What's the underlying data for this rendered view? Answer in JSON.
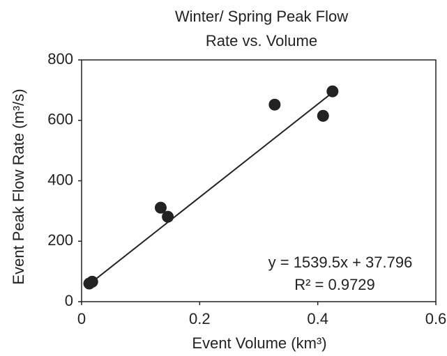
{
  "chart_data": {
    "type": "scatter",
    "title": [
      "Winter/ Spring Peak Flow",
      "Rate vs. Volume"
    ],
    "x_label": "Event Volume (km³)",
    "y_label": "Event Peak Flow Rate (m³/s)",
    "x": [
      0.013,
      0.018,
      0.134,
      0.146,
      0.327,
      0.409,
      0.425
    ],
    "values": [
      60,
      66,
      311,
      281,
      652,
      615,
      696
    ],
    "color": "#222222",
    "xlim": [
      0,
      0.6
    ],
    "xticks": [
      0,
      0.2,
      0.4,
      0.6
    ],
    "ylim": [
      0,
      800
    ],
    "yticks": [
      0,
      200,
      400,
      600,
      800
    ],
    "grid": false,
    "trendline": {
      "slope": 1539.5,
      "intercept": 37.796,
      "label": "y = 1539.5x + 37.796",
      "r2": 0.9729,
      "r2_label": "R² = 0.9729"
    }
  }
}
